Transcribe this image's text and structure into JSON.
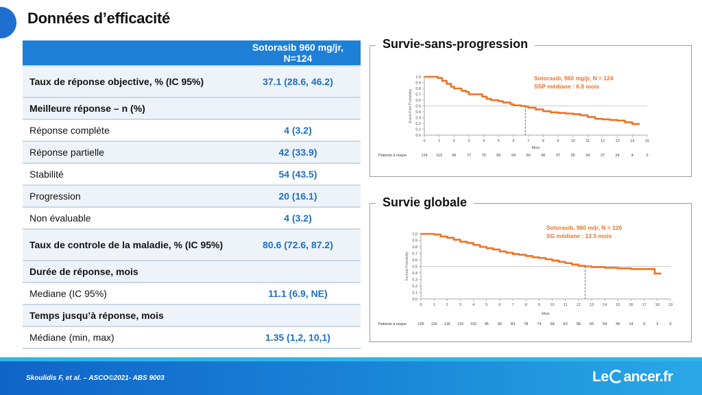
{
  "slide": {
    "title": "Données d’efficacité"
  },
  "table": {
    "header": "Sotorasib 960 mg/jr, N=124",
    "rows": [
      {
        "label": "Taux de réponse objective, % (IC 95%)",
        "value": "37.1 (28.6, 46.2)"
      },
      {
        "label": "Meilleure réponse – n (%)",
        "value": ""
      },
      {
        "label": "Réponse complète",
        "value": "4 (3.2)"
      },
      {
        "label": "Réponse partielle",
        "value": "42 (33.9)"
      },
      {
        "label": "Stabilité",
        "value": "54 (43.5)"
      },
      {
        "label": "Progression",
        "value": "20 (16.1)"
      },
      {
        "label": "Non évaluable",
        "value": "4 (3.2)"
      },
      {
        "label": "Taux de controle de la maladie, % (IC 95%)",
        "value": "80.6 (72.6, 87.2)"
      },
      {
        "label": "Durée de réponse, mois",
        "value": ""
      },
      {
        "label": "Mediane (IC 95%)",
        "value": "11.1 (6.9, NE)"
      },
      {
        "label": "Temps jusqu’à réponse, mois",
        "value": ""
      },
      {
        "label": "Médiane (min, max)",
        "value": "1.35 (1,2, 10,1)"
      }
    ]
  },
  "chart_data": [
    {
      "type": "line",
      "panel_title": "Survie-sans-progression",
      "ylabel": "Event-Free Probability",
      "xlabel": "Mois",
      "xlim": [
        0,
        15
      ],
      "ylim": [
        0,
        1.0
      ],
      "xticks": [
        "0",
        "1",
        "2",
        "3",
        "4",
        "5",
        "6",
        "7",
        "8",
        "9",
        "10",
        "11",
        "12",
        "13",
        "14",
        "15"
      ],
      "yticks": [
        "0.0",
        "0.1",
        "0.2",
        "0.3",
        "0.4",
        "0.5",
        "0.6",
        "0.7",
        "0.8",
        "0.9",
        "1.0"
      ],
      "series": [
        {
          "color": "#f07020",
          "x": [
            0,
            0.9,
            1.2,
            1.5,
            1.8,
            2.0,
            2.5,
            2.8,
            3.0,
            3.5,
            3.9,
            4.2,
            4.5,
            5.0,
            5.3,
            5.8,
            6.0,
            6.5,
            6.8,
            7.0,
            7.5,
            8.0,
            8.5,
            9.0,
            9.5,
            10.0,
            10.5,
            11.0,
            11.5,
            12.0,
            12.5,
            13.0,
            13.5,
            14.0,
            14.5
          ],
          "y": [
            1.0,
            0.98,
            0.93,
            0.88,
            0.83,
            0.8,
            0.76,
            0.74,
            0.7,
            0.7,
            0.66,
            0.62,
            0.6,
            0.58,
            0.56,
            0.53,
            0.51,
            0.5,
            0.49,
            0.47,
            0.44,
            0.41,
            0.39,
            0.38,
            0.37,
            0.36,
            0.34,
            0.31,
            0.28,
            0.27,
            0.26,
            0.25,
            0.22,
            0.19,
            0.19
          ]
        }
      ],
      "reference_line_y": 0.5,
      "median_x": 6.8,
      "annotation": [
        "Sotorasib, 960 mg/jr, N = 124",
        "SSP médiane : 6.8 mois"
      ],
      "risk_label": "Patients à risque",
      "risk_values": [
        "124",
        "119",
        "96",
        "77",
        "75",
        "65",
        "54",
        "50",
        "46",
        "37",
        "35",
        "34",
        "27",
        "24",
        "4",
        "0"
      ]
    },
    {
      "type": "line",
      "panel_title": "Survie globale",
      "ylabel": "Survival Probability",
      "xlabel": "Mois",
      "xlim": [
        0,
        19
      ],
      "ylim": [
        0,
        1.0
      ],
      "xticks": [
        "0",
        "1",
        "2",
        "3",
        "4",
        "5",
        "6",
        "7",
        "8",
        "9",
        "10",
        "11",
        "12",
        "13",
        "14",
        "15",
        "16",
        "17",
        "18",
        "19"
      ],
      "yticks": [
        "0.0",
        "0.1",
        "0.2",
        "0.3",
        "0.4",
        "0.5",
        "0.6",
        "0.7",
        "0.8",
        "0.9",
        "1.0"
      ],
      "series": [
        {
          "color": "#f07020",
          "x": [
            0,
            1.0,
            1.5,
            2.0,
            2.5,
            3.0,
            3.5,
            4.0,
            4.5,
            5.0,
            5.5,
            6.0,
            6.5,
            7.0,
            7.5,
            8.0,
            8.5,
            9.0,
            9.5,
            10.0,
            10.5,
            11.0,
            11.5,
            12.0,
            12.5,
            13.0,
            14.0,
            15.0,
            16.0,
            17.0,
            17.8,
            17.8,
            18.3
          ],
          "y": [
            1.0,
            0.99,
            0.96,
            0.94,
            0.91,
            0.88,
            0.86,
            0.83,
            0.8,
            0.78,
            0.76,
            0.73,
            0.71,
            0.69,
            0.68,
            0.66,
            0.64,
            0.63,
            0.61,
            0.59,
            0.57,
            0.55,
            0.53,
            0.51,
            0.5,
            0.49,
            0.48,
            0.47,
            0.46,
            0.46,
            0.46,
            0.39,
            0.39
          ]
        }
      ],
      "reference_line_y": 0.5,
      "median_x": 12.5,
      "annotation": [
        "Sotorasib, 960 m/jr, N = 126",
        "SG médiane : 12.5 mois"
      ],
      "risk_label": "Patients à risque",
      "risk_values": [
        "126",
        "126",
        "118",
        "110",
        "102",
        "95",
        "90",
        "83",
        "78",
        "74",
        "68",
        "63",
        "58",
        "55",
        "54",
        "45",
        "14",
        "9",
        "3",
        "0"
      ]
    }
  ],
  "footer": {
    "citation": "Skoulidis F, et al. – ASCO©2021- ABS 9003",
    "logo_left": "Le",
    "logo_right": "ancer.fr"
  },
  "colors": {
    "accent": "#1e7fd6",
    "curve": "#f07020",
    "value_text": "#1d6fc2"
  }
}
